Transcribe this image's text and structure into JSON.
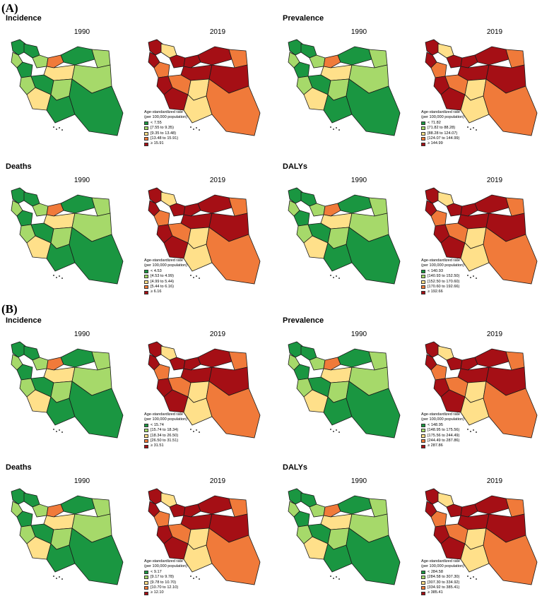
{
  "colors": {
    "c1": "#1a9641",
    "c2": "#a6d96a",
    "c3": "#ffe08a",
    "c4": "#f07a3a",
    "c5": "#a50f15",
    "border": "#1a1a1a"
  },
  "legend_title_1": "Age-standardized rate",
  "legend_title_2": "(per 100,000 population)",
  "sections": [
    {
      "label": "(A)",
      "panels": [
        {
          "title": "Incidence",
          "year1": "1990",
          "year2": "2019",
          "legend": [
            "< 7.55",
            "[7.55 to 9.35)",
            "[9.35 to 13.48)",
            "[13.48 to 15.91)",
            "≥ 15.91"
          ]
        },
        {
          "title": "Prevalence",
          "year1": "1990",
          "year2": "2019",
          "legend": [
            "< 71.82",
            "[71.82 to 88.28)",
            "[88.28 to 124.07)",
            "[124.07 to 144.99)",
            "≥ 144.99"
          ]
        },
        {
          "title": "Deaths",
          "year1": "1990",
          "year2": "2019",
          "legend": [
            "< 4.53",
            "[4.53 to 4.99)",
            "[4.99 to 5.44)",
            "[5.44 to 6.16)",
            "≥ 6.16"
          ]
        },
        {
          "title": "DALYs",
          "year1": "1990",
          "year2": "2019",
          "legend": [
            "< 140.93",
            "[140.93 to 152.50)",
            "[152.50 to 170.60)",
            "[170.60 to 192.66)",
            "≥ 192.66"
          ]
        }
      ]
    },
    {
      "label": "(B)",
      "panels": [
        {
          "title": "Incidence",
          "year1": "1990",
          "year2": "2019",
          "legend": [
            "< 15.74",
            "[15.74 to 18.34)",
            "[18.34 to 26.50)",
            "[26.50 to 31.51)",
            "≥ 31.51"
          ]
        },
        {
          "title": "Prevalence",
          "year1": "1990",
          "year2": "2019",
          "legend": [
            "< 148.95",
            "[148.95 to 175.56)",
            "[175.56 to 244.49)",
            "[244.49 to 287.86)",
            "≥ 287.86"
          ]
        },
        {
          "title": "Deaths",
          "year1": "1990",
          "year2": "2019",
          "legend": [
            "< 9.17",
            "[9.17 to 9.78)",
            "[9.78 to 10.70)",
            "[10.70 to 12.10)",
            "≥ 12.10"
          ]
        },
        {
          "title": "DALYs",
          "year1": "1990",
          "year2": "2019",
          "legend": [
            "< 284.58",
            "[284.58 to 307.30)",
            "[307.30 to 334.92)",
            "[334.92 to 385.41)",
            "≥ 385.41"
          ]
        }
      ]
    }
  ],
  "map_classes": {
    "early": [
      1,
      2,
      1,
      2,
      1,
      2,
      4,
      1,
      2,
      3,
      2,
      1,
      3,
      2,
      1,
      1
    ],
    "late": [
      5,
      5,
      3,
      5,
      4,
      5,
      5,
      5,
      4,
      5,
      5,
      4,
      5,
      3,
      3,
      4
    ]
  }
}
